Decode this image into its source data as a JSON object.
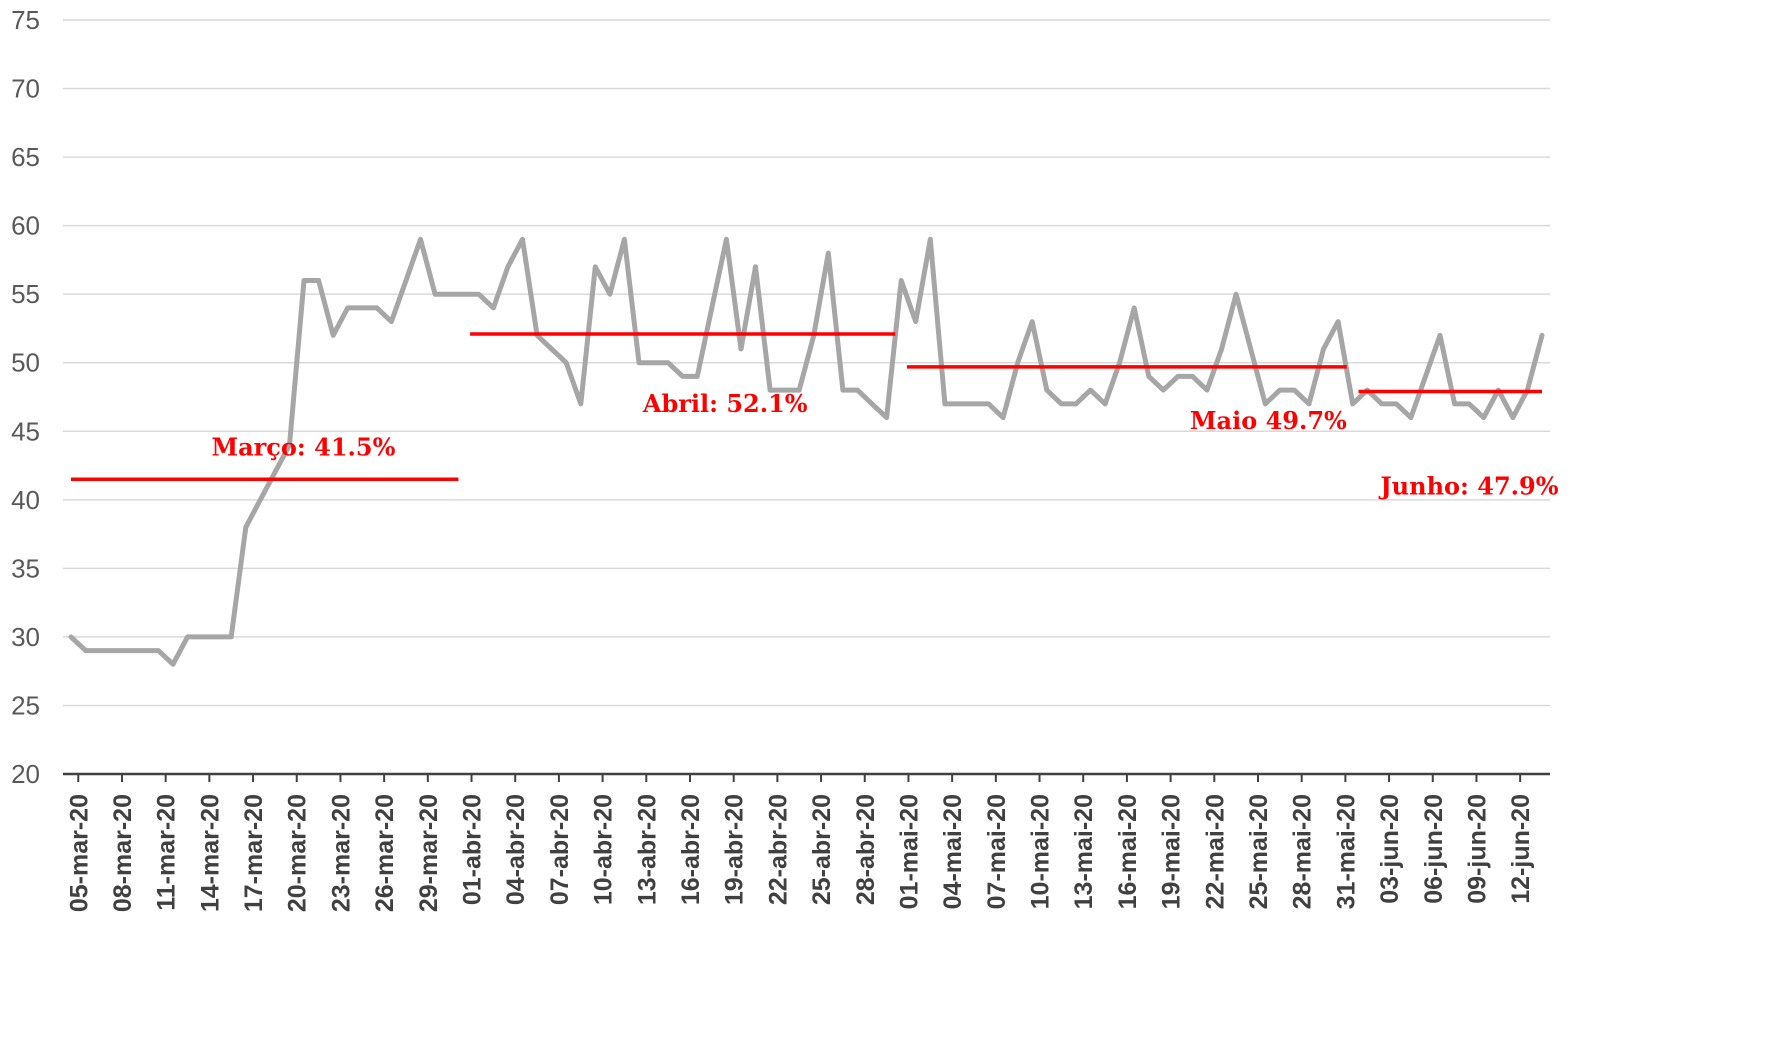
{
  "chart_data": {
    "type": "line",
    "title": "",
    "xlabel": "",
    "ylabel": "",
    "ylim": [
      20,
      75
    ],
    "yticks": [
      20,
      25,
      30,
      35,
      40,
      45,
      50,
      55,
      60,
      65,
      70,
      75
    ],
    "grid": "horizontal",
    "legend": "none",
    "x": [
      "05-mar-20",
      "06-mar-20",
      "07-mar-20",
      "08-mar-20",
      "09-mar-20",
      "10-mar-20",
      "11-mar-20",
      "12-mar-20",
      "13-mar-20",
      "14-mar-20",
      "15-mar-20",
      "16-mar-20",
      "17-mar-20",
      "18-mar-20",
      "19-mar-20",
      "20-mar-20",
      "21-mar-20",
      "22-mar-20",
      "23-mar-20",
      "24-mar-20",
      "25-mar-20",
      "26-mar-20",
      "27-mar-20",
      "28-mar-20",
      "29-mar-20",
      "30-mar-20",
      "31-mar-20",
      "01-abr-20",
      "02-abr-20",
      "03-abr-20",
      "04-abr-20",
      "05-abr-20",
      "06-abr-20",
      "07-abr-20",
      "08-abr-20",
      "09-abr-20",
      "10-abr-20",
      "11-abr-20",
      "12-abr-20",
      "13-abr-20",
      "14-abr-20",
      "15-abr-20",
      "16-abr-20",
      "17-abr-20",
      "18-abr-20",
      "19-abr-20",
      "20-abr-20",
      "21-abr-20",
      "22-abr-20",
      "23-abr-20",
      "24-abr-20",
      "25-abr-20",
      "26-abr-20",
      "27-abr-20",
      "28-abr-20",
      "29-abr-20",
      "30-abr-20",
      "01-mai-20",
      "02-mai-20",
      "03-mai-20",
      "04-mai-20",
      "05-mai-20",
      "06-mai-20",
      "07-mai-20",
      "08-mai-20",
      "09-mai-20",
      "10-mai-20",
      "11-mai-20",
      "12-mai-20",
      "13-mai-20",
      "14-mai-20",
      "15-mai-20",
      "16-mai-20",
      "17-mai-20",
      "18-mai-20",
      "19-mai-20",
      "20-mai-20",
      "21-mai-20",
      "22-mai-20",
      "23-mai-20",
      "24-mai-20",
      "25-mai-20",
      "26-mai-20",
      "27-mai-20",
      "28-mai-20",
      "29-mai-20",
      "30-mai-20",
      "31-mai-20",
      "01-jun-20",
      "02-jun-20",
      "03-jun-20",
      "04-jun-20",
      "05-jun-20",
      "06-jun-20",
      "07-jun-20",
      "08-jun-20",
      "09-jun-20",
      "10-jun-20",
      "11-jun-20",
      "12-jun-20",
      "13-jun-20",
      "14-jun-20"
    ],
    "x_tick_labels": [
      "05-mar-20",
      "08-mar-20",
      "11-mar-20",
      "14-mar-20",
      "17-mar-20",
      "20-mar-20",
      "23-mar-20",
      "26-mar-20",
      "29-mar-20",
      "01-abr-20",
      "04-abr-20",
      "07-abr-20",
      "10-abr-20",
      "13-abr-20",
      "16-abr-20",
      "19-abr-20",
      "22-abr-20",
      "25-abr-20",
      "28-abr-20",
      "01-mai-20",
      "04-mai-20",
      "07-mai-20",
      "10-mai-20",
      "13-mai-20",
      "16-mai-20",
      "19-mai-20",
      "22-mai-20",
      "25-mai-20",
      "28-mai-20",
      "31-mai-20",
      "03-jun-20",
      "06-jun-20",
      "09-jun-20",
      "12-jun-20"
    ],
    "series": [
      {
        "color": "#a6a6a6",
        "values": [
          30,
          29,
          29,
          29,
          29,
          29,
          29,
          28,
          30,
          30,
          30,
          30,
          38,
          40,
          42,
          44,
          56,
          56,
          52,
          54,
          54,
          54,
          53,
          56,
          59,
          55,
          55,
          55,
          55,
          54,
          57,
          59,
          52,
          51,
          50,
          47,
          57,
          55,
          59,
          50,
          50,
          50,
          49,
          49,
          54,
          59,
          51,
          57,
          48,
          48,
          48,
          52,
          58,
          48,
          48,
          47,
          46,
          56,
          53,
          59,
          47,
          47,
          47,
          47,
          46,
          50,
          53,
          48,
          47,
          47,
          48,
          47,
          50,
          54,
          49,
          48,
          49,
          49,
          48,
          51,
          55,
          51,
          47,
          48,
          48,
          47,
          51,
          53,
          47,
          48,
          47,
          47,
          46,
          49,
          52,
          47,
          47,
          46,
          48,
          46,
          48,
          52
        ]
      }
    ],
    "monthly_averages": [
      {
        "label": "Março: 41.5%",
        "value": 41.5,
        "start": "05-mar-20",
        "end": "31-mar-20",
        "color": "#ff0000"
      },
      {
        "label": "Abril: 52.1%",
        "value": 52.1,
        "start": "01-abr-20",
        "end": "30-abr-20",
        "color": "#ff0000"
      },
      {
        "label": "Maio 49.7%",
        "value": 49.7,
        "start": "01-mai-20",
        "end": "31-mai-20",
        "color": "#ff0000"
      },
      {
        "label": "Junho: 47.9%",
        "value": 47.9,
        "start": "01-jun-20",
        "end": "14-jun-20",
        "color": "#ff0000"
      }
    ]
  }
}
